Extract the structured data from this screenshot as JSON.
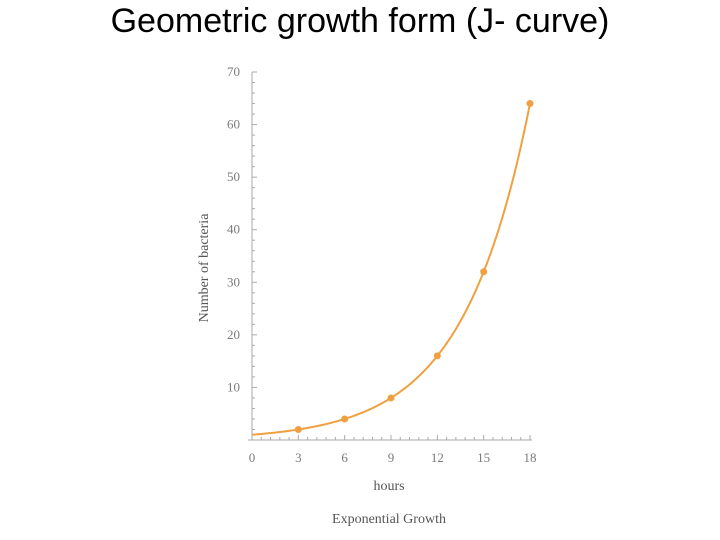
{
  "slide": {
    "title": "Geometric growth form (J- curve)"
  },
  "chart_data": {
    "type": "line",
    "title": "",
    "caption": "Exponential Growth",
    "xlabel": "hours",
    "ylabel": "Number of bacteria",
    "xlim": [
      0,
      18
    ],
    "ylim": [
      0,
      70
    ],
    "xticks": [
      0,
      3,
      6,
      9,
      12,
      15,
      18
    ],
    "yticks": [
      10,
      20,
      30,
      40,
      50,
      60,
      70
    ],
    "grid": false,
    "series": [
      {
        "x": [
          3,
          6,
          9,
          12,
          15,
          18
        ],
        "y": [
          2,
          4,
          8,
          16,
          32,
          64
        ],
        "color": "#f0a040",
        "markers": true,
        "curve_start": {
          "x": 0,
          "y": 1
        }
      }
    ]
  }
}
